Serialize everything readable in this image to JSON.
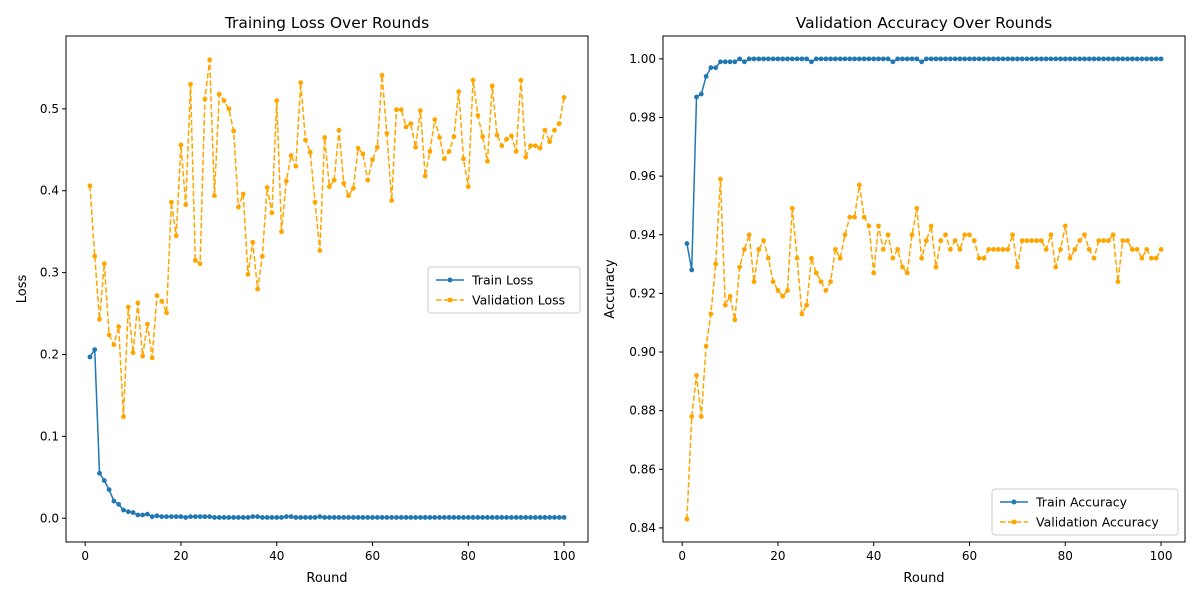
{
  "chart_data": [
    {
      "type": "line",
      "title": "Training Loss Over Rounds",
      "xlabel": "Round",
      "ylabel": "Loss",
      "xlim": [
        -4,
        105
      ],
      "ylim": [
        -0.029,
        0.589
      ],
      "xticks": [
        0,
        20,
        40,
        60,
        80,
        100
      ],
      "xtick_labels": [
        "0",
        "20",
        "40",
        "60",
        "80",
        "100"
      ],
      "yticks": [
        0.0,
        0.1,
        0.2,
        0.3,
        0.4,
        0.5
      ],
      "ytick_labels": [
        "0.0",
        "0.1",
        "0.2",
        "0.3",
        "0.4",
        "0.5"
      ],
      "grid": false,
      "legend": "center-right",
      "x_start": 1,
      "series": [
        {
          "name": "Train Loss",
          "color": "#1f77b4",
          "linestyle": "solid",
          "marker": "circle",
          "values": [
            0.197,
            0.206,
            0.055,
            0.046,
            0.035,
            0.021,
            0.017,
            0.01,
            0.008,
            0.007,
            0.004,
            0.004,
            0.005,
            0.002,
            0.003,
            0.002,
            0.002,
            0.002,
            0.002,
            0.002,
            0.001,
            0.002,
            0.002,
            0.002,
            0.002,
            0.002,
            0.001,
            0.001,
            0.001,
            0.001,
            0.001,
            0.001,
            0.001,
            0.001,
            0.002,
            0.002,
            0.001,
            0.001,
            0.001,
            0.001,
            0.001,
            0.002,
            0.002,
            0.001,
            0.001,
            0.001,
            0.001,
            0.001,
            0.002,
            0.001,
            0.001,
            0.001,
            0.001,
            0.001,
            0.001,
            0.001,
            0.001,
            0.001,
            0.001,
            0.001,
            0.001,
            0.001,
            0.001,
            0.001,
            0.001,
            0.001,
            0.001,
            0.001,
            0.001,
            0.001,
            0.001,
            0.001,
            0.001,
            0.001,
            0.001,
            0.001,
            0.001,
            0.001,
            0.001,
            0.001,
            0.001,
            0.001,
            0.001,
            0.001,
            0.001,
            0.001,
            0.001,
            0.001,
            0.001,
            0.001,
            0.001,
            0.001,
            0.001,
            0.001,
            0.001,
            0.001,
            0.001,
            0.001,
            0.001,
            0.001
          ]
        },
        {
          "name": "Validation Loss",
          "color": "#ffa500",
          "linestyle": "dashed",
          "marker": "circle",
          "values": [
            0.406,
            0.32,
            0.243,
            0.311,
            0.224,
            0.212,
            0.234,
            0.124,
            0.258,
            0.202,
            0.263,
            0.198,
            0.237,
            0.196,
            0.272,
            0.265,
            0.251,
            0.386,
            0.345,
            0.456,
            0.383,
            0.53,
            0.315,
            0.311,
            0.512,
            0.56,
            0.394,
            0.518,
            0.51,
            0.5,
            0.473,
            0.38,
            0.396,
            0.298,
            0.337,
            0.28,
            0.32,
            0.404,
            0.373,
            0.51,
            0.35,
            0.412,
            0.443,
            0.43,
            0.532,
            0.462,
            0.447,
            0.386,
            0.327,
            0.465,
            0.405,
            0.413,
            0.474,
            0.409,
            0.394,
            0.403,
            0.452,
            0.445,
            0.413,
            0.438,
            0.453,
            0.541,
            0.47,
            0.388,
            0.499,
            0.499,
            0.478,
            0.482,
            0.453,
            0.498,
            0.418,
            0.448,
            0.487,
            0.465,
            0.439,
            0.448,
            0.466,
            0.521,
            0.439,
            0.405,
            0.535,
            0.492,
            0.466,
            0.436,
            0.528,
            0.468,
            0.455,
            0.463,
            0.467,
            0.448,
            0.535,
            0.441,
            0.455,
            0.455,
            0.452,
            0.474,
            0.46,
            0.474,
            0.482,
            0.514
          ]
        }
      ]
    },
    {
      "type": "line",
      "title": "Validation Accuracy Over Rounds",
      "xlabel": "Round",
      "ylabel": "Accuracy",
      "xlim": [
        -4,
        105
      ],
      "ylim": [
        0.8352,
        1.0078
      ],
      "xticks": [
        0,
        20,
        40,
        60,
        80,
        100
      ],
      "xtick_labels": [
        "0",
        "20",
        "40",
        "60",
        "80",
        "100"
      ],
      "yticks": [
        0.84,
        0.86,
        0.88,
        0.9,
        0.92,
        0.94,
        0.96,
        0.98,
        1.0
      ],
      "ytick_labels": [
        "0.84",
        "0.86",
        "0.88",
        "0.90",
        "0.92",
        "0.94",
        "0.96",
        "0.98",
        "1.00"
      ],
      "grid": false,
      "legend": "lower-right",
      "x_start": 1,
      "series": [
        {
          "name": "Train Accuracy",
          "color": "#1f77b4",
          "linestyle": "solid",
          "marker": "circle",
          "values": [
            0.937,
            0.928,
            0.987,
            0.988,
            0.994,
            0.997,
            0.997,
            0.999,
            0.999,
            0.999,
            0.999,
            1.0,
            0.999,
            1.0,
            1.0,
            1.0,
            1.0,
            1.0,
            1.0,
            1.0,
            1.0,
            1.0,
            1.0,
            1.0,
            1.0,
            1.0,
            0.999,
            1.0,
            1.0,
            1.0,
            1.0,
            1.0,
            1.0,
            1.0,
            1.0,
            1.0,
            1.0,
            1.0,
            1.0,
            1.0,
            1.0,
            1.0,
            1.0,
            0.999,
            1.0,
            1.0,
            1.0,
            1.0,
            1.0,
            0.999,
            1.0,
            1.0,
            1.0,
            1.0,
            1.0,
            1.0,
            1.0,
            1.0,
            1.0,
            1.0,
            1.0,
            1.0,
            1.0,
            1.0,
            1.0,
            1.0,
            1.0,
            1.0,
            1.0,
            1.0,
            1.0,
            1.0,
            1.0,
            1.0,
            1.0,
            1.0,
            1.0,
            1.0,
            1.0,
            1.0,
            1.0,
            1.0,
            1.0,
            1.0,
            1.0,
            1.0,
            1.0,
            1.0,
            1.0,
            1.0,
            1.0,
            1.0,
            1.0,
            1.0,
            1.0,
            1.0,
            1.0,
            1.0,
            1.0,
            1.0
          ]
        },
        {
          "name": "Validation Accuracy",
          "color": "#ffa500",
          "linestyle": "dashed",
          "marker": "circle",
          "values": [
            0.843,
            0.878,
            0.892,
            0.878,
            0.902,
            0.913,
            0.93,
            0.959,
            0.916,
            0.919,
            0.911,
            0.929,
            0.935,
            0.94,
            0.924,
            0.935,
            0.938,
            0.932,
            0.924,
            0.921,
            0.919,
            0.921,
            0.949,
            0.932,
            0.913,
            0.916,
            0.932,
            0.927,
            0.924,
            0.921,
            0.924,
            0.935,
            0.932,
            0.94,
            0.946,
            0.946,
            0.957,
            0.946,
            0.943,
            0.927,
            0.943,
            0.935,
            0.94,
            0.932,
            0.935,
            0.929,
            0.927,
            0.94,
            0.949,
            0.932,
            0.938,
            0.943,
            0.929,
            0.938,
            0.94,
            0.935,
            0.938,
            0.935,
            0.94,
            0.94,
            0.938,
            0.932,
            0.932,
            0.935,
            0.935,
            0.935,
            0.935,
            0.935,
            0.94,
            0.929,
            0.938,
            0.938,
            0.938,
            0.938,
            0.938,
            0.935,
            0.94,
            0.929,
            0.935,
            0.943,
            0.932,
            0.935,
            0.938,
            0.94,
            0.935,
            0.932,
            0.938,
            0.938,
            0.938,
            0.94,
            0.924,
            0.938,
            0.938,
            0.935,
            0.935,
            0.932,
            0.935,
            0.932,
            0.932,
            0.935
          ]
        }
      ]
    }
  ]
}
